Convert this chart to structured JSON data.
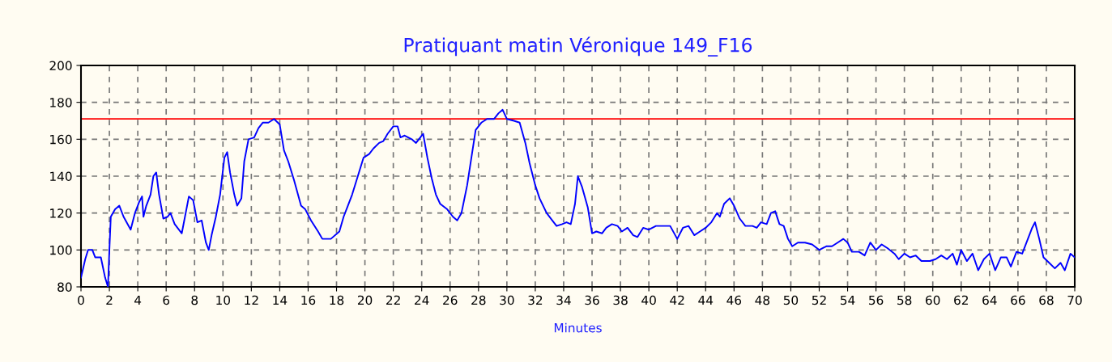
{
  "chart_data": {
    "type": "line",
    "title": "Pratiquant matin Véronique 149_F16",
    "xlabel": "Minutes",
    "xlim": [
      0,
      70
    ],
    "xticks": [
      0,
      2,
      4,
      6,
      8,
      10,
      12,
      14,
      16,
      18,
      20,
      22,
      24,
      26,
      28,
      30,
      32,
      34,
      36,
      38,
      40,
      42,
      44,
      46,
      48,
      50,
      52,
      54,
      56,
      58,
      60,
      62,
      64,
      66,
      68,
      70
    ],
    "ylim": [
      80,
      200
    ],
    "yticks": [
      80,
      100,
      120,
      140,
      160,
      180,
      200
    ],
    "grid": true,
    "marker": "none",
    "line_style": "solid",
    "ref_lines": [
      {
        "axis": "y",
        "value": 171,
        "color": "#ff0000"
      }
    ],
    "series": [
      {
        "color": "#0000ff",
        "x": [
          0,
          0.3,
          0.5,
          0.8,
          1,
          1.4,
          1.7,
          1.9,
          2.0,
          2.1,
          2.4,
          2.7,
          3.0,
          3.5,
          3.8,
          4.1,
          4.3,
          4.4,
          4.6,
          4.9,
          5.1,
          5.3,
          5.5,
          5.8,
          6.1,
          6.3,
          6.6,
          7.1,
          7.3,
          7.6,
          7.9,
          8.2,
          8.5,
          8.8,
          9.0,
          9.2,
          9.5,
          9.8,
          10.1,
          10.3,
          10.5,
          10.8,
          11.0,
          11.3,
          11.5,
          11.8,
          12.2,
          12.5,
          12.8,
          13.2,
          13.6,
          14.0,
          14.3,
          14.6,
          15.0,
          15.5,
          15.8,
          16.2,
          16.7,
          17.0,
          17.6,
          18.2,
          18.5,
          18.8,
          19.1,
          19.5,
          19.9,
          20.3,
          20.6,
          21.0,
          21.3,
          21.6,
          22.0,
          22.3,
          22.5,
          22.8,
          23.3,
          23.6,
          23.9,
          24.1,
          24.4,
          24.7,
          25.0,
          25.3,
          25.8,
          26.2,
          26.5,
          26.8,
          27.2,
          27.5,
          27.8,
          28.2,
          28.6,
          29.1,
          29.4,
          29.7,
          30.0,
          30.5,
          30.9,
          31.3,
          31.6,
          32.0,
          32.3,
          32.8,
          33.2,
          33.5,
          33.9,
          34.2,
          34.5,
          34.8,
          35.0,
          35.3,
          35.7,
          36.0,
          36.3,
          36.7,
          37.0,
          37.4,
          37.8,
          38.1,
          38.5,
          38.9,
          39.2,
          39.6,
          40.0,
          40.5,
          41.0,
          41.5,
          42.0,
          42.4,
          42.8,
          43.2,
          43.6,
          44.0,
          44.4,
          44.8,
          45.0,
          45.3,
          45.7,
          46.0,
          46.4,
          46.8,
          47.3,
          47.6,
          47.9,
          48.3,
          48.6,
          48.9,
          49.2,
          49.5,
          49.8,
          50.1,
          50.5,
          51.0,
          51.5,
          52.0,
          52.5,
          52.9,
          53.3,
          53.7,
          54.0,
          54.3,
          54.8,
          55.2,
          55.6,
          56.0,
          56.4,
          56.8,
          57.3,
          57.6,
          58.0,
          58.4,
          58.8,
          59.2,
          59.8,
          60.2,
          60.6,
          61.0,
          61.4,
          61.7,
          62.0,
          62.4,
          62.8,
          63.2,
          63.6,
          64.0,
          64.4,
          64.8,
          65.2,
          65.5,
          65.9,
          66.3,
          66.7,
          67.0,
          67.2,
          67.5,
          67.8,
          68.2,
          68.6,
          69.0,
          69.3,
          69.7,
          70.0
        ],
        "values": [
          85,
          95,
          100,
          100,
          96,
          96,
          85,
          80,
          100,
          118,
          122,
          124,
          118,
          111,
          120,
          126,
          129,
          118,
          124,
          130,
          140,
          142,
          130,
          117,
          118,
          120,
          114,
          109,
          117,
          129,
          127,
          115,
          116,
          104,
          100,
          108,
          118,
          130,
          150,
          153,
          142,
          130,
          124,
          128,
          148,
          160,
          161,
          166,
          169,
          169,
          171,
          168,
          154,
          148,
          138,
          124,
          122,
          116,
          110,
          106,
          106,
          110,
          118,
          124,
          130,
          140,
          150,
          152,
          155,
          158,
          159,
          163,
          167,
          167,
          161,
          162,
          160,
          158,
          161,
          163,
          150,
          139,
          130,
          125,
          122,
          118,
          116,
          120,
          135,
          150,
          165,
          169,
          171,
          171,
          174,
          176,
          171,
          170,
          169,
          158,
          147,
          135,
          128,
          120,
          116,
          113,
          114,
          115,
          114,
          125,
          140,
          134,
          123,
          109,
          110,
          109,
          112,
          114,
          113,
          110,
          112,
          108,
          107,
          112,
          111,
          113,
          113,
          113,
          106,
          112,
          113,
          108,
          110,
          112,
          115,
          120,
          118,
          125,
          128,
          124,
          117,
          113,
          113,
          112,
          115,
          114,
          120,
          121,
          114,
          113,
          106,
          102,
          104,
          104,
          103,
          100,
          102,
          102,
          104,
          106,
          104,
          99,
          99,
          97,
          104,
          100,
          103,
          101,
          98,
          95,
          98,
          96,
          97,
          94,
          94,
          95,
          97,
          95,
          98,
          92,
          100,
          94,
          98,
          89,
          95,
          98,
          89,
          96,
          96,
          91,
          99,
          98,
          106,
          112,
          115,
          106,
          96,
          93,
          90,
          93,
          89,
          98,
          96
        ]
      }
    ]
  }
}
